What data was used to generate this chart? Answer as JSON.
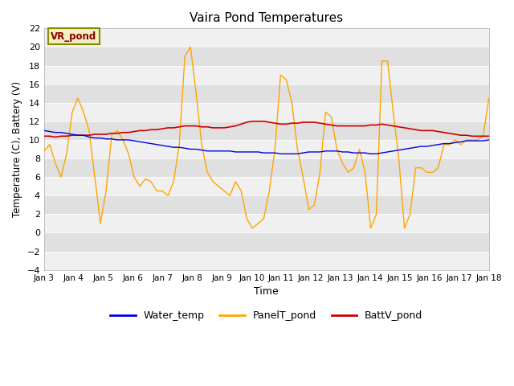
{
  "title": "Vaira Pond Temperatures",
  "xlabel": "Time",
  "ylabel": "Temperature (C), Battery (V)",
  "ylim": [
    -4,
    22
  ],
  "yticks": [
    -4,
    -2,
    0,
    2,
    4,
    6,
    8,
    10,
    12,
    14,
    16,
    18,
    20,
    22
  ],
  "annotation_text": "VR_pond",
  "annotation_color": "#8B0000",
  "annotation_bg": "#f0f0c0",
  "annotation_edge": "#8B8B00",
  "water_color": "#0000dd",
  "panel_color": "#FFA500",
  "batt_color": "#cc0000",
  "legend_labels": [
    "Water_temp",
    "PanelT_pond",
    "BattV_pond"
  ],
  "xtick_labels": [
    "Jan 3",
    "Jan 4",
    "Jan 5",
    "Jan 6",
    "Jan 7",
    "Jan 8",
    "Jan 9",
    "Jan 10",
    "Jan 11",
    "Jan 12",
    "Jan 13",
    "Jan 14",
    "Jan 15",
    "Jan 16",
    "Jan 17",
    "Jan 18"
  ],
  "band_colors": [
    "#f0f0f0",
    "#e0e0e0"
  ],
  "water_temp": [
    11.0,
    10.9,
    10.8,
    10.8,
    10.7,
    10.6,
    10.5,
    10.5,
    10.3,
    10.2,
    10.2,
    10.1,
    10.1,
    10.0,
    10.0,
    10.0,
    9.9,
    9.8,
    9.7,
    9.6,
    9.5,
    9.4,
    9.3,
    9.2,
    9.2,
    9.1,
    9.0,
    9.0,
    8.9,
    8.8,
    8.8,
    8.8,
    8.8,
    8.8,
    8.7,
    8.7,
    8.7,
    8.7,
    8.7,
    8.6,
    8.6,
    8.6,
    8.5,
    8.5,
    8.5,
    8.5,
    8.6,
    8.7,
    8.7,
    8.7,
    8.8,
    8.8,
    8.8,
    8.7,
    8.7,
    8.6,
    8.6,
    8.6,
    8.5,
    8.5,
    8.6,
    8.7,
    8.8,
    8.9,
    9.0,
    9.1,
    9.2,
    9.3,
    9.3,
    9.4,
    9.5,
    9.6,
    9.6,
    9.7,
    9.8,
    9.9,
    9.9,
    9.9,
    9.9,
    10.0
  ],
  "panel_temp": [
    8.8,
    9.5,
    7.5,
    6.0,
    8.5,
    13.0,
    14.5,
    13.0,
    11.0,
    6.0,
    1.0,
    4.5,
    10.5,
    11.0,
    10.0,
    8.5,
    6.0,
    5.0,
    5.8,
    5.5,
    4.5,
    4.5,
    4.0,
    5.5,
    9.5,
    19.0,
    20.0,
    15.0,
    9.5,
    6.5,
    5.5,
    5.0,
    4.5,
    4.0,
    5.5,
    4.5,
    1.5,
    0.5,
    1.0,
    1.5,
    4.5,
    9.0,
    17.0,
    16.5,
    14.0,
    9.0,
    6.0,
    2.5,
    3.0,
    6.5,
    13.0,
    12.5,
    9.0,
    7.5,
    6.5,
    7.0,
    9.0,
    6.5,
    0.5,
    2.0,
    18.5,
    18.5,
    13.0,
    8.0,
    0.5,
    2.0,
    7.0,
    7.0,
    6.5,
    6.5,
    7.0,
    9.5,
    9.5,
    10.0,
    9.5,
    10.0,
    10.0,
    10.0,
    10.5,
    14.5
  ],
  "batt_voltage": [
    10.4,
    10.4,
    10.3,
    10.4,
    10.4,
    10.5,
    10.5,
    10.5,
    10.5,
    10.6,
    10.6,
    10.6,
    10.7,
    10.7,
    10.8,
    10.8,
    10.9,
    11.0,
    11.0,
    11.1,
    11.1,
    11.2,
    11.3,
    11.3,
    11.4,
    11.5,
    11.5,
    11.5,
    11.4,
    11.4,
    11.3,
    11.3,
    11.3,
    11.4,
    11.5,
    11.7,
    11.9,
    12.0,
    12.0,
    12.0,
    11.9,
    11.8,
    11.7,
    11.7,
    11.8,
    11.8,
    11.9,
    11.9,
    11.9,
    11.8,
    11.7,
    11.6,
    11.5,
    11.5,
    11.5,
    11.5,
    11.5,
    11.5,
    11.6,
    11.6,
    11.7,
    11.6,
    11.5,
    11.4,
    11.3,
    11.2,
    11.1,
    11.0,
    11.0,
    11.0,
    10.9,
    10.8,
    10.7,
    10.6,
    10.5,
    10.5,
    10.4,
    10.4,
    10.4,
    10.4
  ]
}
